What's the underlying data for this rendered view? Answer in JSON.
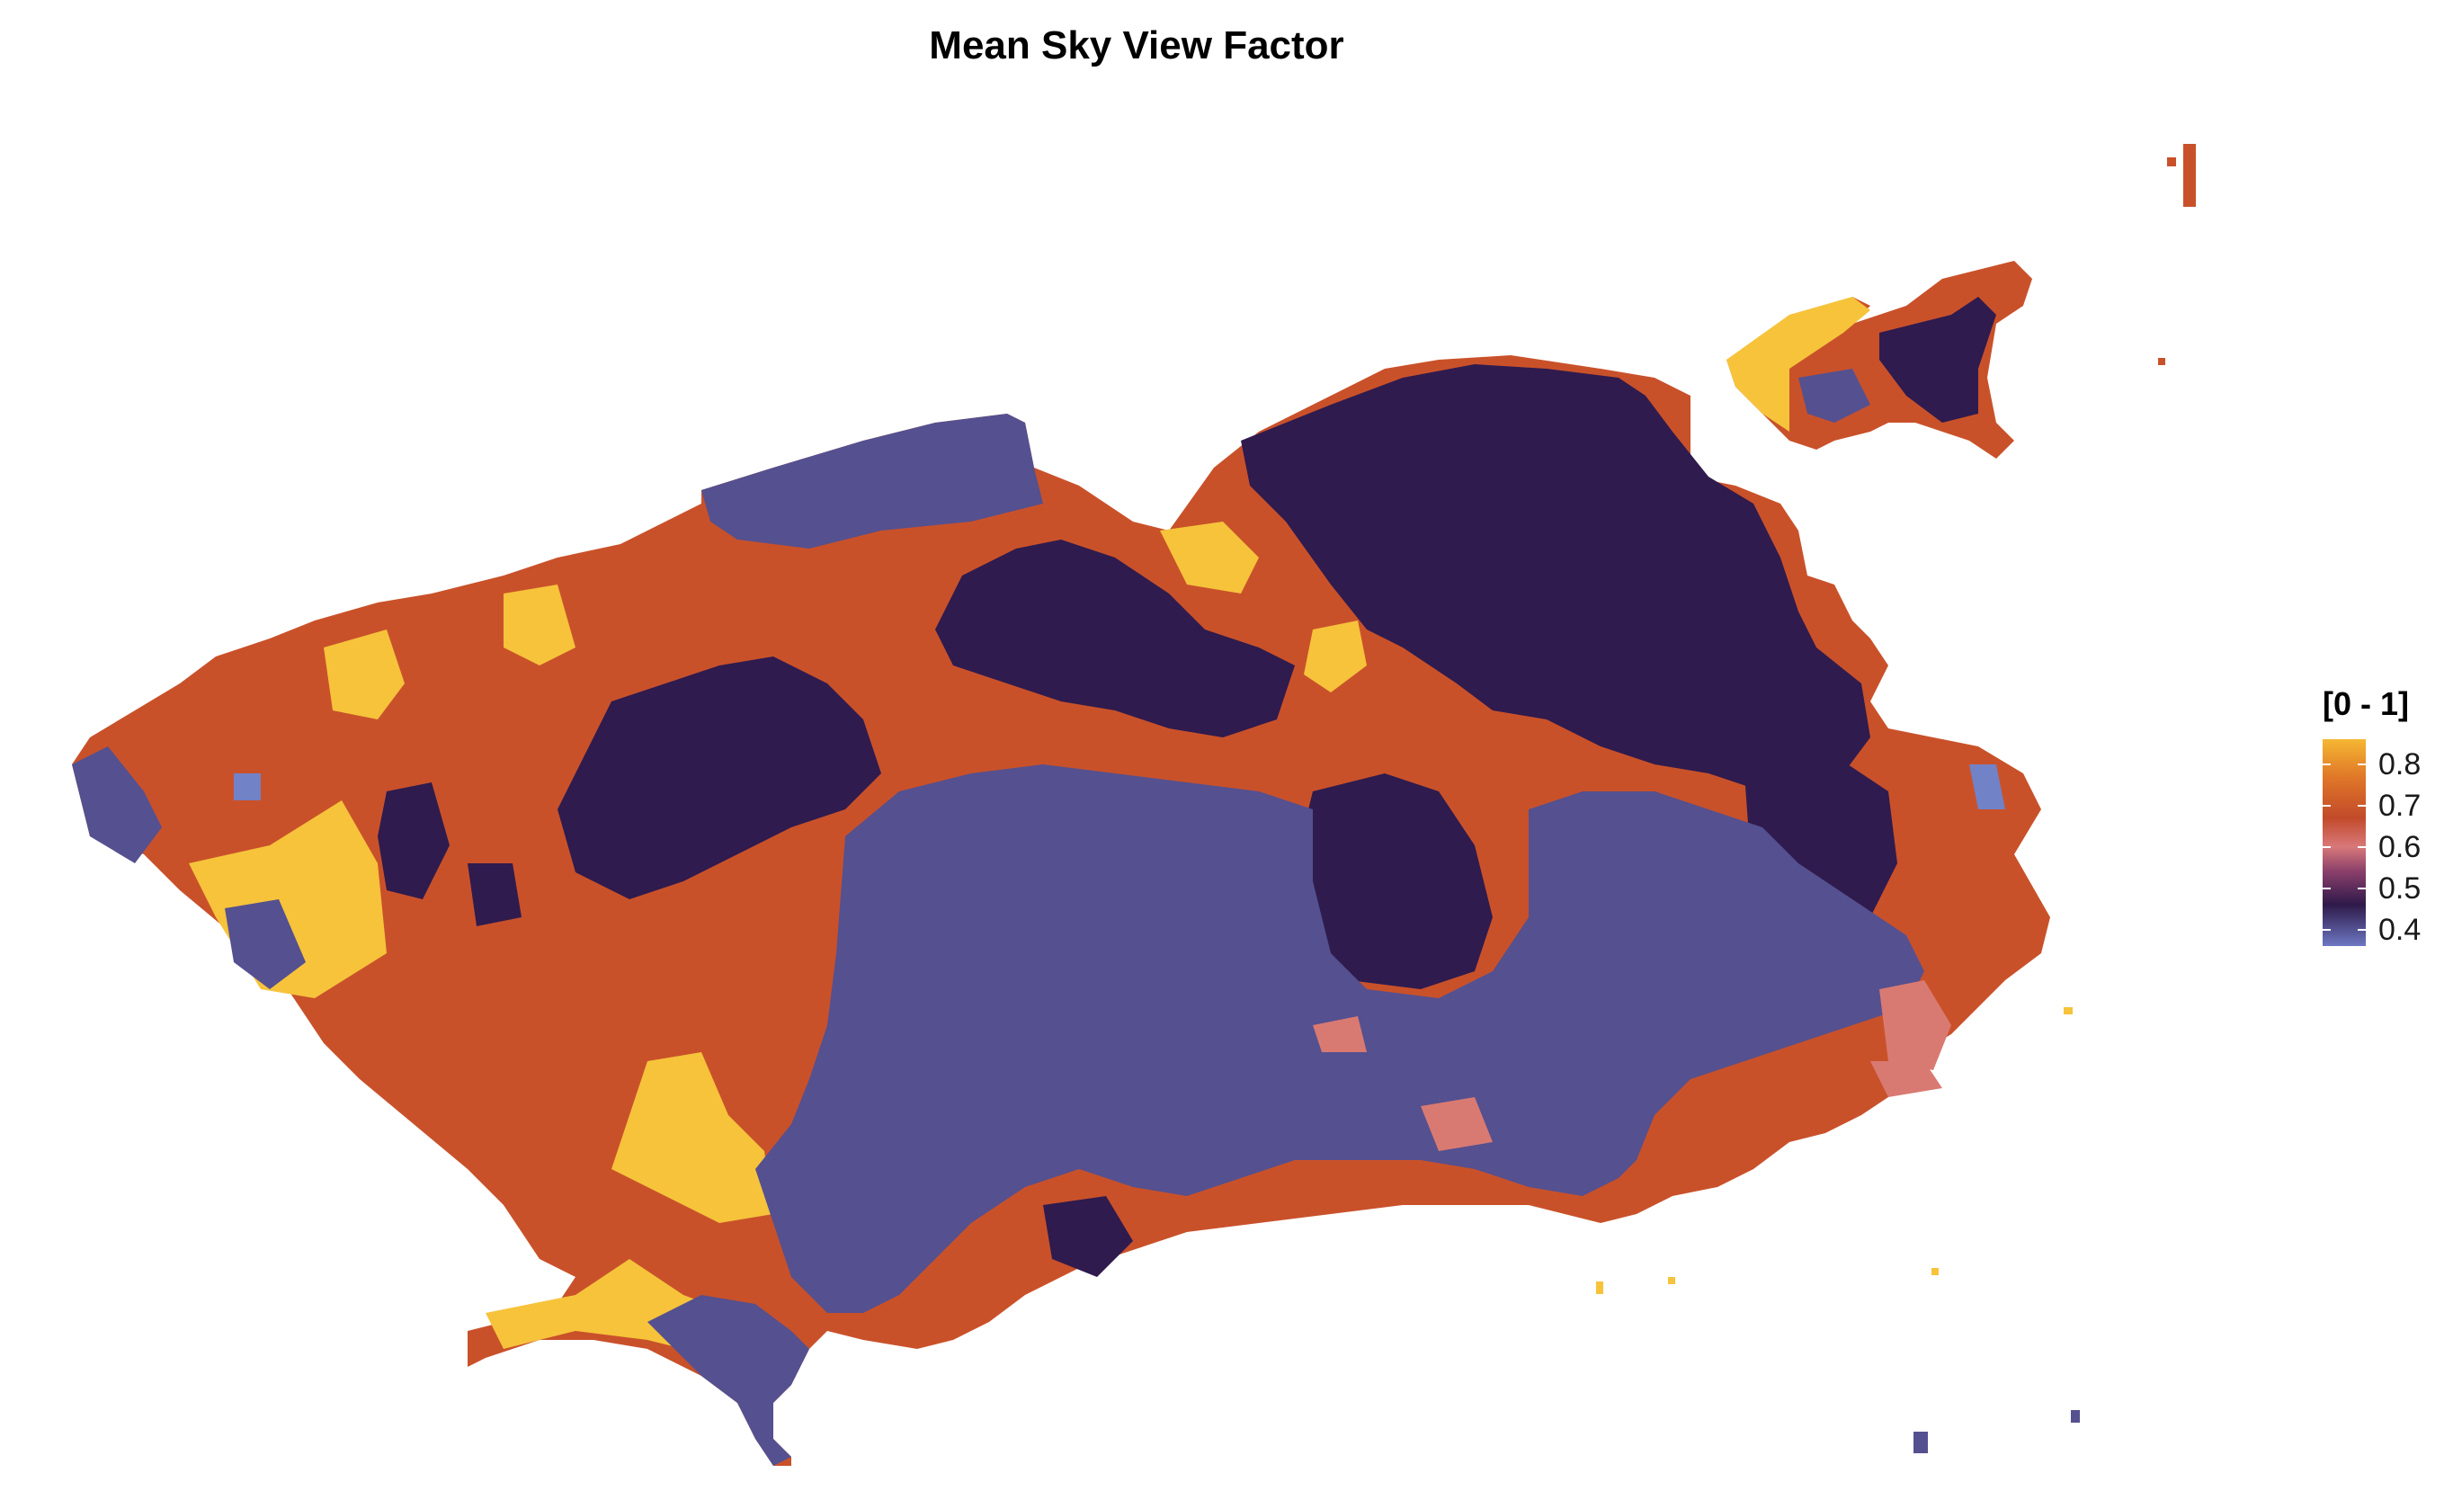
{
  "title": "Mean Sky View Factor",
  "legend": {
    "title": "[0 - 1]",
    "ticks": [
      "0.8",
      "0.7",
      "0.6",
      "0.5",
      "0.4"
    ],
    "tick_values": [
      0.8,
      0.7,
      0.6,
      0.5,
      0.4
    ],
    "min_value": 0.36,
    "max_value": 0.86
  },
  "colors": {
    "yellow": "#f6c33b",
    "orange": "#c9512a",
    "salmon": "#d97a72",
    "dark_purple": "#2f1b4e",
    "slate": "#55508f",
    "light_blue": "#7282c6"
  }
}
